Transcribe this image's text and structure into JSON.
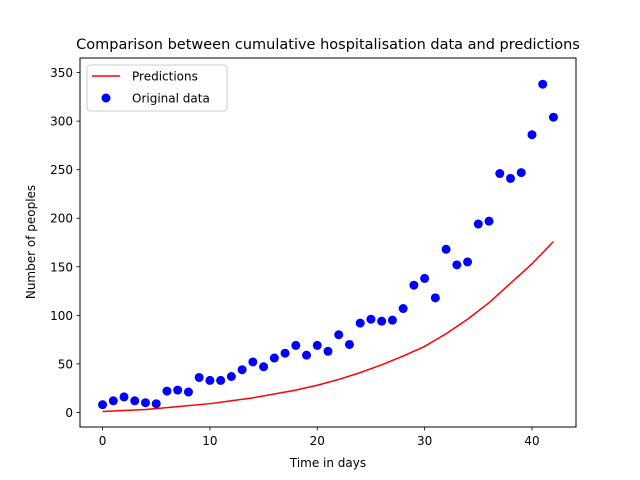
{
  "chart_data": {
    "type": "scatter",
    "title": "Comparison between cumulative hospitalisation data and predictions",
    "xlabel": "Time in days",
    "ylabel": "Number of peoples",
    "xlim": [
      -2.1,
      44.1
    ],
    "ylim": [
      -15,
      365
    ],
    "x_ticks": [
      0,
      10,
      20,
      30,
      40
    ],
    "y_ticks": [
      0,
      50,
      100,
      150,
      200,
      250,
      300,
      350
    ],
    "grid": false,
    "legend": "top-left",
    "series": [
      {
        "name": "Predictions",
        "kind": "line",
        "color": "#ff0000",
        "x": [
          0,
          2,
          4,
          6,
          8,
          10,
          12,
          14,
          16,
          18,
          20,
          22,
          24,
          26,
          28,
          30,
          32,
          34,
          36,
          38,
          40,
          42
        ],
        "y": [
          1,
          2,
          3,
          5,
          7,
          9,
          12,
          15,
          19,
          23,
          28,
          34,
          41,
          49,
          58,
          68,
          81,
          96,
          113,
          133,
          153,
          176
        ]
      },
      {
        "name": "Original data",
        "kind": "scatter",
        "color": "#0000ff",
        "x": [
          0,
          1,
          2,
          3,
          4,
          5,
          6,
          7,
          8,
          9,
          10,
          11,
          12,
          13,
          14,
          15,
          16,
          17,
          18,
          19,
          20,
          21,
          22,
          23,
          24,
          25,
          26,
          27,
          28,
          29,
          30,
          31,
          32,
          33,
          34,
          35,
          36,
          37,
          38,
          39,
          40,
          41,
          42
        ],
        "y": [
          8,
          12,
          16,
          12,
          10,
          9,
          22,
          23,
          21,
          36,
          33,
          33,
          37,
          44,
          52,
          47,
          56,
          61,
          69,
          59,
          69,
          63,
          80,
          70,
          92,
          96,
          94,
          95,
          107,
          131,
          138,
          118,
          168,
          152,
          155,
          194,
          197,
          246,
          241,
          247,
          286,
          338,
          304
        ]
      }
    ]
  }
}
